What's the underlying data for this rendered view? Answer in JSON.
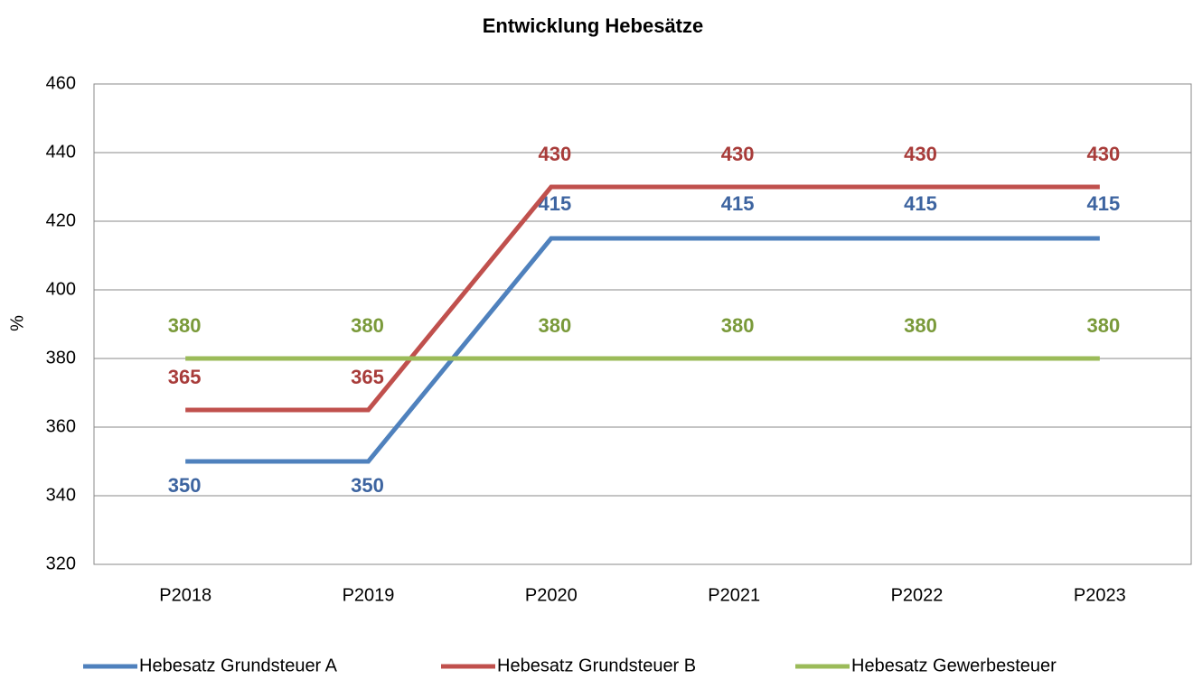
{
  "chart_data": {
    "type": "line",
    "title": "Entwicklung Hebesätze",
    "ylabel": "%",
    "categories": [
      "P2018",
      "P2019",
      "P2020",
      "P2021",
      "P2022",
      "P2023"
    ],
    "series": [
      {
        "name": "Hebesatz Grundsteuer A",
        "color": "#4f81bd",
        "label_color": "#3d64a0",
        "values": [
          350,
          350,
          415,
          415,
          415,
          415
        ]
      },
      {
        "name": "Hebesatz Grundsteuer B",
        "color": "#c0504d",
        "label_color": "#a83c3a",
        "values": [
          365,
          365,
          430,
          430,
          430,
          430
        ]
      },
      {
        "name": "Hebesatz Gewerbesteuer",
        "color": "#9bbb59",
        "label_color": "#7a9a3a",
        "values": [
          380,
          380,
          380,
          380,
          380,
          380
        ]
      }
    ],
    "ylim": [
      320,
      460
    ],
    "yticks": [
      320,
      340,
      360,
      380,
      400,
      420,
      440,
      460
    ],
    "grid": true,
    "legend": "bottom"
  }
}
